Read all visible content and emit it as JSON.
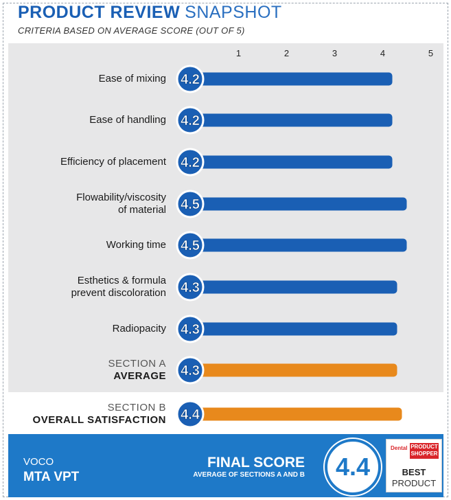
{
  "title": {
    "bold": "PRODUCT REVIEW",
    "light": "SNAPSHOT"
  },
  "subtitle": "CRITERIA BASED ON AVERAGE SCORE (OUT OF 5)",
  "chart_data": {
    "type": "bar",
    "orientation": "horizontal",
    "xlim": [
      0,
      5
    ],
    "xticks": [
      "1",
      "2",
      "3",
      "4",
      "5"
    ],
    "categories": [
      [
        "Ease of mixing"
      ],
      [
        "Ease of handling"
      ],
      [
        "Efficiency of placement"
      ],
      [
        "Flowability/viscosity",
        "of material"
      ],
      [
        "Working time"
      ],
      [
        "Esthetics & formula",
        "prevent discoloration"
      ],
      [
        "Radiopacity"
      ]
    ],
    "values": [
      4.2,
      4.2,
      4.2,
      4.5,
      4.5,
      4.3,
      4.3
    ],
    "value_labels": [
      "4.2",
      "4.2",
      "4.2",
      "4.5",
      "4.5",
      "4.3",
      "4.3"
    ],
    "bar_color": "#1a5fb4",
    "section_a": {
      "line1": "SECTION A",
      "line2": "AVERAGE",
      "value": 4.3,
      "label": "4.3",
      "color": "#e8891c"
    },
    "section_b": {
      "line1": "SECTION B",
      "line2": "OVERALL SATISFACTION",
      "value": 4.4,
      "label": "4.4",
      "color": "#e8891c"
    }
  },
  "footer": {
    "brand": "VOCO",
    "product": "MTA VPT",
    "final_title": "FINAL SCORE",
    "final_sub": "AVERAGE OF SECTIONS A AND B",
    "final_value": "4.4",
    "badge_dental": "Dental",
    "badge_ps": "PRODUCT SHOPPER",
    "badge_best": "BEST",
    "badge_product": "PRODUCT",
    "color": "#1e79c8"
  }
}
